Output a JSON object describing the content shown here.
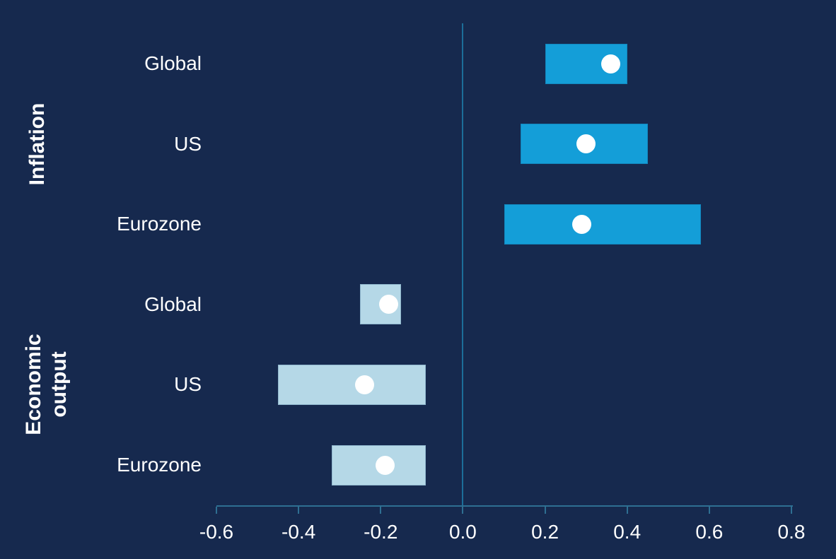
{
  "colors": {
    "background": "#16294E",
    "inflation_bar": "#149ED8",
    "output_bar": "#B5D8E7",
    "point_dot": "#FFFFFF",
    "zero_line": "#1C6E99",
    "axis_line": "#2E6F92",
    "text": "#FFFFFF"
  },
  "chart_data": {
    "type": "bar",
    "variant": "horizontal-range-bars-with-point-estimates",
    "title": "",
    "xlabel": "",
    "ylabel": "",
    "grid": false,
    "legend": false,
    "x_axis": {
      "min": -0.6,
      "max": 0.8,
      "ticks": [
        -0.6,
        -0.4,
        -0.2,
        0.0,
        0.2,
        0.4,
        0.6,
        0.8
      ],
      "tick_labels": [
        "-0.6",
        "-0.4",
        "-0.2",
        "0.0",
        "0.2",
        "0.4",
        "0.6",
        "0.8"
      ]
    },
    "groups": [
      {
        "label": "Inflation",
        "label_display": "Inflation",
        "rows": [
          {
            "category": "Global",
            "range": [
              0.2,
              0.4
            ],
            "point": 0.36
          },
          {
            "category": "US",
            "range": [
              0.14,
              0.45
            ],
            "point": 0.3
          },
          {
            "category": "Eurozone",
            "range": [
              0.1,
              0.58
            ],
            "point": 0.29
          }
        ]
      },
      {
        "label": "Economic output",
        "label_display": "Economic\noutput",
        "rows": [
          {
            "category": "Global",
            "range": [
              -0.25,
              -0.15
            ],
            "point": -0.18
          },
          {
            "category": "US",
            "range": [
              -0.45,
              -0.09
            ],
            "point": -0.24
          },
          {
            "category": "Eurozone",
            "range": [
              -0.32,
              -0.09
            ],
            "point": -0.19
          }
        ]
      }
    ]
  }
}
